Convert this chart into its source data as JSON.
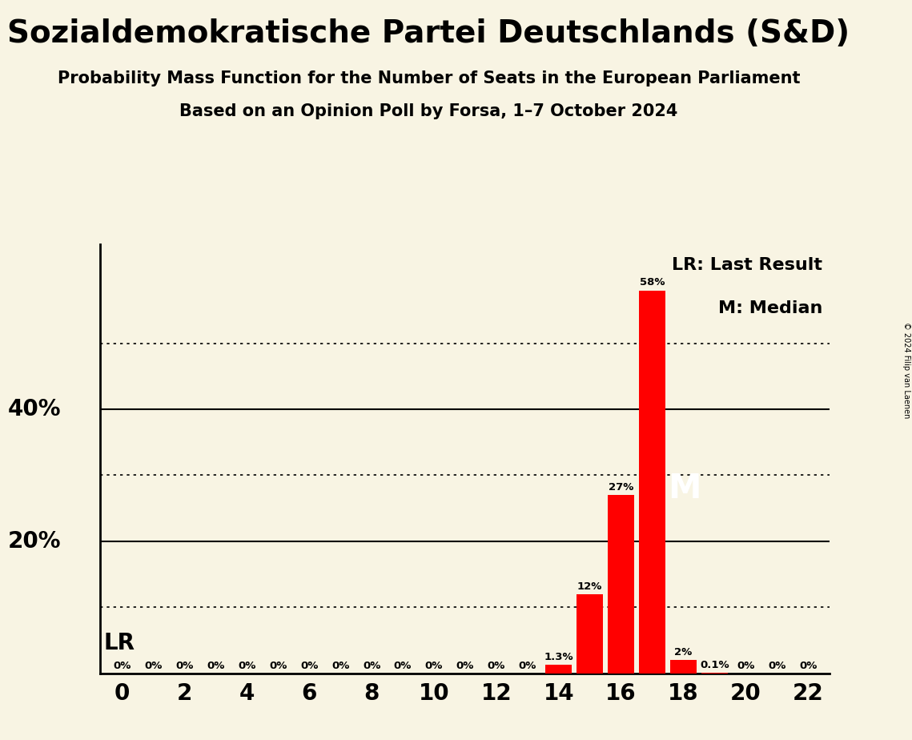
{
  "title": "Sozialdemokratische Partei Deutschlands (S&D)",
  "subtitle1": "Probability Mass Function for the Number of Seats in the European Parliament",
  "subtitle2": "Based on an Opinion Poll by Forsa, 1–7 October 2024",
  "copyright": "© 2024 Filip van Laenen",
  "x_min": 0,
  "x_max": 22,
  "y_max": 65,
  "seats": [
    0,
    1,
    2,
    3,
    4,
    5,
    6,
    7,
    8,
    9,
    10,
    11,
    12,
    13,
    14,
    15,
    16,
    17,
    18,
    19,
    20,
    21,
    22
  ],
  "probabilities": [
    0,
    0,
    0,
    0,
    0,
    0,
    0,
    0,
    0,
    0,
    0,
    0,
    0,
    0,
    1.3,
    12,
    27,
    58,
    2,
    0.1,
    0,
    0,
    0
  ],
  "bar_color": "#ff0000",
  "background_color": "#f8f4e3",
  "text_color": "#000000",
  "lr_seat": 14,
  "median_seat": 17,
  "solid_gridlines": [
    20,
    40
  ],
  "dotted_gridlines": [
    10,
    30,
    50
  ],
  "legend_lr": "LR: Last Result",
  "legend_m": "M: Median",
  "lr_label": "LR",
  "m_label": "M",
  "bar_width": 0.85
}
